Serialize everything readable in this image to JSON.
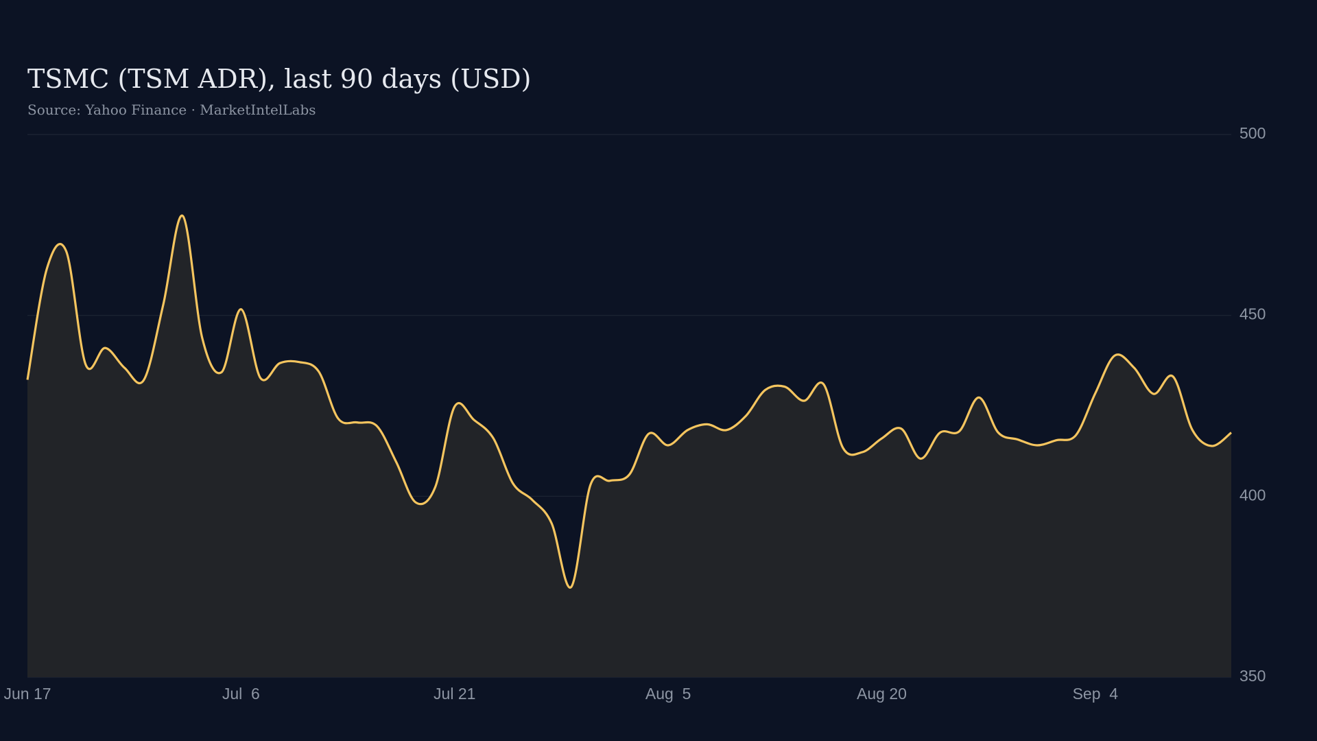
{
  "chart_data": {
    "type": "area",
    "title": "TSMC (TSM ADR), last 90 days (USD)",
    "subtitle": "Source: Yahoo Finance · MarketIntelLabs",
    "categories": [
      "Jun 17",
      null,
      null,
      null,
      null,
      null,
      null,
      null,
      null,
      null,
      null,
      "Jul  6",
      null,
      null,
      null,
      null,
      null,
      null,
      null,
      null,
      null,
      null,
      "Jul 21",
      null,
      null,
      null,
      null,
      null,
      null,
      null,
      null,
      null,
      null,
      "Aug  5",
      null,
      null,
      null,
      null,
      null,
      null,
      null,
      null,
      null,
      null,
      "Aug 20",
      null,
      null,
      null,
      null,
      null,
      null,
      null,
      null,
      null,
      null,
      "Sep  4",
      null,
      null,
      null,
      null,
      null,
      null,
      null
    ],
    "values": [
      432.2,
      462.9,
      467.7,
      436.4,
      441.0,
      435.5,
      432.2,
      453.1,
      477.5,
      443.8,
      434.3,
      451.7,
      432.7,
      436.8,
      437.1,
      434.5,
      421.5,
      420.4,
      419.4,
      409.4,
      398.3,
      402.5,
      424.8,
      421.1,
      416.0,
      403.6,
      399.0,
      392.5,
      374.9,
      403.2,
      404.3,
      406.0,
      417.3,
      414.1,
      418.3,
      419.9,
      418.3,
      422.2,
      429.4,
      430.3,
      426.4,
      431.0,
      413.4,
      412.2,
      416.0,
      418.7,
      410.4,
      417.6,
      418.0,
      427.3,
      417.6,
      415.7,
      414.1,
      415.5,
      416.9,
      428.5,
      438.9,
      435.5,
      428.3,
      433.1,
      418.3,
      413.9,
      417.6
    ],
    "color": "#f5c55f",
    "fill": "#222428",
    "ylim": [
      350,
      500
    ],
    "yticks": [
      350,
      400,
      450,
      500
    ],
    "grid": true
  }
}
